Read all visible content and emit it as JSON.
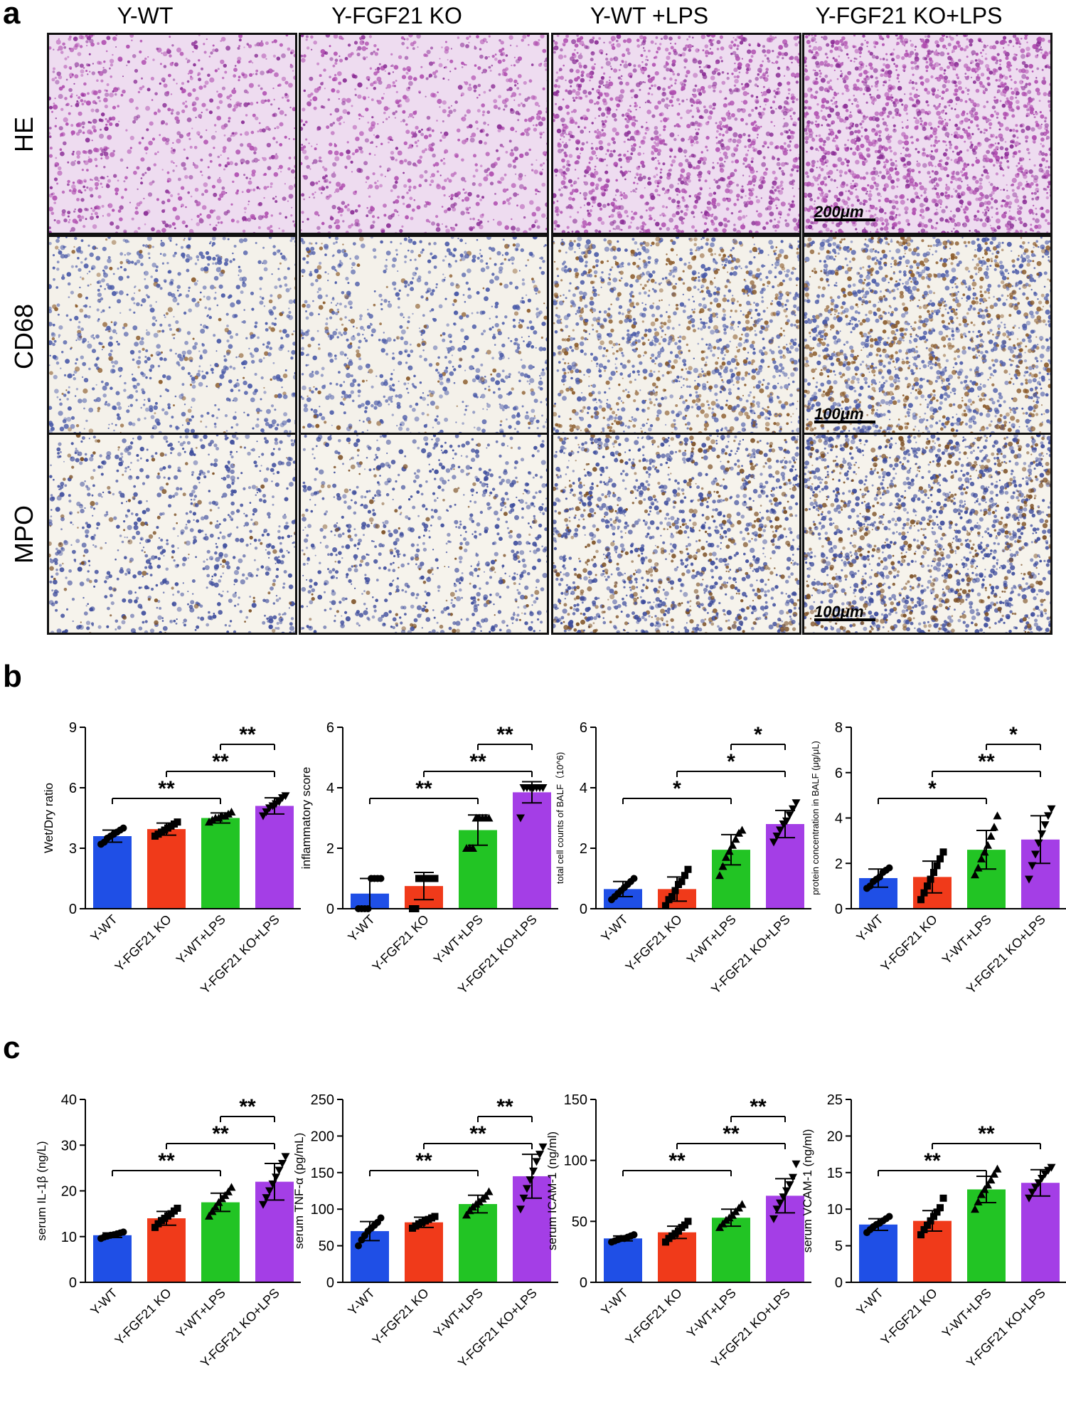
{
  "panel_a": {
    "letter": "a",
    "columns": [
      "Y-WT",
      "Y-FGF21 KO",
      "Y-WT +LPS",
      "Y-FGF21 KO+LPS"
    ],
    "rows": [
      {
        "label": "HE",
        "scale": "200μm",
        "bg": "#eedcf0",
        "cell": "#b04fb0",
        "cell2": "#8a2d95",
        "brown": 0.0
      },
      {
        "label": "CD68",
        "scale": "100μm",
        "bg": "#f4f1ea",
        "cell": "#4a5aa8",
        "cell2": "#8a5a2a",
        "brown": 0.12
      },
      {
        "label": "MPO",
        "scale": "100μm",
        "bg": "#f6f3ec",
        "cell": "#3d4c9c",
        "cell2": "#7a4d22",
        "brown": 0.1
      }
    ]
  },
  "panel_b_letter": "b",
  "panel_c_letter": "c",
  "colors": {
    "Y-WT": "#1f4fe6",
    "Y-FGF21 KO": "#f03a1a",
    "Y-WT+LPS": "#22c424",
    "Y-FGF21 KO+LPS": "#a43ee6"
  },
  "chart_data": [
    {
      "type": "bar",
      "panel": "b",
      "ylabel": "Wet/Dry ratio",
      "ylim": [
        0,
        9
      ],
      "yticks": [
        0,
        3,
        6,
        9
      ],
      "categories": [
        "Y-WT",
        "Y-FGF21 KO",
        "Y-WT+LPS",
        "Y-FGF21 KO+LPS"
      ],
      "values": [
        3.6,
        3.95,
        4.5,
        5.1
      ],
      "errors": [
        0.3,
        0.3,
        0.25,
        0.4
      ],
      "points": [
        [
          3.2,
          3.3,
          3.5,
          3.6,
          3.7,
          3.8,
          3.9,
          4.0
        ],
        [
          3.6,
          3.7,
          3.8,
          3.9,
          4.0,
          4.1,
          4.2,
          4.3
        ],
        [
          4.3,
          4.4,
          4.5,
          4.5,
          4.6,
          4.6,
          4.7,
          4.8
        ],
        [
          4.6,
          4.8,
          5.0,
          5.1,
          5.2,
          5.3,
          5.5,
          5.6
        ]
      ],
      "significance": [
        {
          "from": 0,
          "to": 2,
          "label": "**"
        },
        {
          "from": 1,
          "to": 3,
          "label": "**"
        },
        {
          "from": 2,
          "to": 3,
          "label": "**"
        }
      ]
    },
    {
      "type": "bar",
      "panel": "b",
      "ylabel": "inflammatory score",
      "ylim": [
        0,
        6
      ],
      "yticks": [
        0,
        2,
        4,
        6
      ],
      "categories": [
        "Y-WT",
        "Y-FGF21 KO",
        "Y-WT+LPS",
        "Y-FGF21 KO+LPS"
      ],
      "values": [
        0.5,
        0.75,
        2.6,
        3.85
      ],
      "errors": [
        0.5,
        0.45,
        0.5,
        0.35
      ],
      "points": [
        [
          0,
          0,
          0,
          0,
          1,
          1,
          1,
          1
        ],
        [
          0,
          0,
          1,
          1,
          1,
          1,
          1,
          1
        ],
        [
          2,
          2,
          2,
          3,
          3,
          3,
          3,
          3
        ],
        [
          3,
          4,
          4,
          4,
          4,
          4,
          4,
          4
        ]
      ],
      "significance": [
        {
          "from": 0,
          "to": 2,
          "label": "**"
        },
        {
          "from": 1,
          "to": 3,
          "label": "**"
        },
        {
          "from": 2,
          "to": 3,
          "label": "**"
        }
      ]
    },
    {
      "type": "bar",
      "panel": "b",
      "ylabel": "total cell counts of BALF（10^6)",
      "ylim": [
        0,
        6
      ],
      "yticks": [
        0,
        2,
        4,
        6
      ],
      "categories": [
        "Y-WT",
        "Y-FGF21 KO",
        "Y-WT+LPS",
        "Y-FGF21 KO+LPS"
      ],
      "values": [
        0.65,
        0.65,
        1.95,
        2.8
      ],
      "errors": [
        0.25,
        0.4,
        0.5,
        0.45
      ],
      "points": [
        [
          0.3,
          0.4,
          0.5,
          0.6,
          0.7,
          0.8,
          0.9,
          1.0
        ],
        [
          0.1,
          0.3,
          0.4,
          0.6,
          0.8,
          0.9,
          1.1,
          1.3
        ],
        [
          1.1,
          1.4,
          1.7,
          1.9,
          2.1,
          2.3,
          2.5,
          2.6
        ],
        [
          2.2,
          2.4,
          2.6,
          2.8,
          2.9,
          3.1,
          3.3,
          3.5
        ]
      ],
      "significance": [
        {
          "from": 0,
          "to": 2,
          "label": "*"
        },
        {
          "from": 1,
          "to": 3,
          "label": "*"
        },
        {
          "from": 2,
          "to": 3,
          "label": "*"
        }
      ]
    },
    {
      "type": "bar",
      "panel": "b",
      "ylabel": "protein concentration in BALF (μg/μL)",
      "ylim": [
        0,
        8
      ],
      "yticks": [
        0,
        2,
        4,
        6,
        8
      ],
      "categories": [
        "Y-WT",
        "Y-FGF21 KO",
        "Y-WT+LPS",
        "Y-FGF21 KO+LPS"
      ],
      "values": [
        1.35,
        1.4,
        2.6,
        3.05
      ],
      "errors": [
        0.4,
        0.7,
        0.85,
        1.05
      ],
      "points": [
        [
          0.9,
          1.0,
          1.2,
          1.3,
          1.4,
          1.6,
          1.7,
          1.8
        ],
        [
          0.4,
          0.7,
          1.0,
          1.3,
          1.6,
          1.9,
          2.2,
          2.5
        ],
        [
          1.5,
          1.8,
          2.2,
          2.5,
          2.8,
          3.2,
          3.6,
          4.1
        ],
        [
          1.3,
          1.9,
          2.4,
          2.9,
          3.3,
          3.7,
          4.1,
          4.4
        ]
      ],
      "significance": [
        {
          "from": 0,
          "to": 2,
          "label": "*"
        },
        {
          "from": 1,
          "to": 3,
          "label": "**"
        },
        {
          "from": 2,
          "to": 3,
          "label": "*"
        }
      ]
    },
    {
      "type": "bar",
      "panel": "c",
      "ylabel": "serum IL-1β (ng/L)",
      "ylim": [
        0,
        40
      ],
      "yticks": [
        0,
        10,
        20,
        30,
        40
      ],
      "categories": [
        "Y-WT",
        "Y-FGF21 KO",
        "Y-WT+LPS",
        "Y-FGF21 KO+LPS"
      ],
      "values": [
        10.3,
        14.0,
        17.5,
        22.0
      ],
      "errors": [
        0.5,
        1.5,
        2.0,
        4.0
      ],
      "points": [
        [
          9.6,
          9.9,
          10.1,
          10.3,
          10.4,
          10.6,
          10.8,
          11.0
        ],
        [
          12.0,
          12.8,
          13.5,
          14.0,
          14.5,
          15.0,
          15.6,
          16.2
        ],
        [
          14.5,
          15.5,
          16.5,
          17.5,
          18.3,
          19.0,
          19.8,
          20.8
        ],
        [
          17.0,
          18.5,
          20.0,
          21.5,
          23.0,
          24.5,
          26.0,
          27.5
        ]
      ],
      "significance": [
        {
          "from": 0,
          "to": 2,
          "label": "**"
        },
        {
          "from": 1,
          "to": 3,
          "label": "**"
        },
        {
          "from": 2,
          "to": 3,
          "label": "**"
        }
      ]
    },
    {
      "type": "bar",
      "panel": "c",
      "ylabel": "serum TNF-α (pg/mL)",
      "ylim": [
        0,
        250
      ],
      "yticks": [
        0,
        50,
        100,
        150,
        200,
        250
      ],
      "categories": [
        "Y-WT",
        "Y-FGF21 KO",
        "Y-WT+LPS",
        "Y-FGF21 KO+LPS"
      ],
      "values": [
        70,
        82,
        107,
        145
      ],
      "errors": [
        13,
        7,
        12,
        30
      ],
      "points": [
        [
          50,
          58,
          64,
          70,
          74,
          78,
          82,
          88
        ],
        [
          74,
          77,
          80,
          82,
          84,
          86,
          88,
          90
        ],
        [
          92,
          98,
          103,
          107,
          110,
          114,
          118,
          124
        ],
        [
          100,
          115,
          128,
          140,
          152,
          165,
          175,
          185
        ]
      ],
      "significance": [
        {
          "from": 0,
          "to": 2,
          "label": "**"
        },
        {
          "from": 1,
          "to": 3,
          "label": "**"
        },
        {
          "from": 2,
          "to": 3,
          "label": "**"
        }
      ]
    },
    {
      "type": "bar",
      "panel": "c",
      "ylabel": "serum ICAM-1 (ng/ml)",
      "ylim": [
        0,
        150
      ],
      "yticks": [
        0,
        50,
        100,
        150
      ],
      "categories": [
        "Y-WT",
        "Y-FGF21 KO",
        "Y-WT+LPS",
        "Y-FGF21 KO+LPS"
      ],
      "values": [
        36,
        41,
        53,
        71
      ],
      "errors": [
        2,
        5,
        7,
        14
      ],
      "points": [
        [
          33,
          34,
          35,
          36,
          36,
          37,
          38,
          39
        ],
        [
          33,
          36,
          38,
          40,
          42,
          45,
          47,
          50
        ],
        [
          45,
          48,
          51,
          53,
          55,
          58,
          61,
          64
        ],
        [
          52,
          60,
          65,
          70,
          75,
          80,
          86,
          97
        ]
      ],
      "significance": [
        {
          "from": 0,
          "to": 2,
          "label": "**"
        },
        {
          "from": 1,
          "to": 3,
          "label": "**"
        },
        {
          "from": 2,
          "to": 3,
          "label": "**"
        }
      ]
    },
    {
      "type": "bar",
      "panel": "c",
      "ylabel": "serum VCAM-1 (ng/ml)",
      "ylim": [
        0,
        25
      ],
      "yticks": [
        0,
        5,
        10,
        15,
        20,
        25
      ],
      "categories": [
        "Y-WT",
        "Y-FGF21 KO",
        "Y-WT+LPS",
        "Y-FGF21 KO+LPS"
      ],
      "values": [
        7.9,
        8.4,
        12.7,
        13.6
      ],
      "errors": [
        0.8,
        1.4,
        1.8,
        1.8
      ],
      "points": [
        [
          6.8,
          7.2,
          7.6,
          7.9,
          8.1,
          8.4,
          8.7,
          9.0
        ],
        [
          6.5,
          7.2,
          7.8,
          8.4,
          9.0,
          9.6,
          10.2,
          11.5
        ],
        [
          10.0,
          11.0,
          12.0,
          12.7,
          13.3,
          14.0,
          14.8,
          15.5
        ],
        [
          11.5,
          12.3,
          13.0,
          13.6,
          14.2,
          14.8,
          15.3,
          15.7
        ]
      ],
      "significance": [
        {
          "from": 0,
          "to": 2,
          "label": "**"
        },
        {
          "from": 1,
          "to": 3,
          "label": "**"
        }
      ]
    }
  ]
}
